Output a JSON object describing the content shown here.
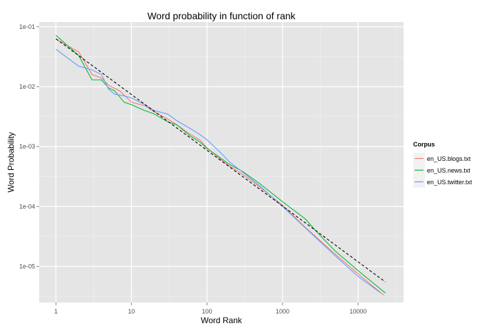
{
  "chart_data": {
    "type": "line",
    "title": "Word probability in function of rank",
    "xlabel": "Word Rank",
    "ylabel": "Word Probability",
    "x_scale": "log10",
    "y_scale": "log10",
    "xlim": [
      0.6,
      40000
    ],
    "ylim": [
      2.5e-06,
      0.12
    ],
    "x_ticks": [
      {
        "value": 1,
        "label": "1"
      },
      {
        "value": 10,
        "label": "10"
      },
      {
        "value": 100,
        "label": "100"
      },
      {
        "value": 1000,
        "label": "1000"
      },
      {
        "value": 10000,
        "label": "10000"
      }
    ],
    "y_ticks": [
      {
        "value": 1e-05,
        "label": "1e-05"
      },
      {
        "value": 0.0001,
        "label": "1e-04"
      },
      {
        "value": 0.001,
        "label": "1e-03"
      },
      {
        "value": 0.01,
        "label": "1e-02"
      },
      {
        "value": 0.1,
        "label": "1e-01"
      }
    ],
    "grid": true,
    "legend": {
      "title": "Corpus",
      "placement": "right"
    },
    "series": [
      {
        "name": "en_US.blogs.txt",
        "color": "#F8766D",
        "x": [
          1,
          2,
          3,
          4,
          5,
          7,
          10,
          15,
          20,
          30,
          40,
          60,
          80,
          100,
          150,
          200,
          300,
          500,
          1000,
          2000,
          5000,
          10000,
          22000
        ],
        "y": [
          0.062,
          0.038,
          0.016,
          0.014,
          0.0105,
          0.0085,
          0.0055,
          0.0048,
          0.0038,
          0.0029,
          0.0023,
          0.0016,
          0.0013,
          0.00095,
          0.00062,
          0.00047,
          0.00034,
          0.00021,
          0.000105,
          4.5e-05,
          1.6e-05,
          7.5e-06,
          3.3e-06
        ]
      },
      {
        "name": "en_US.news.txt",
        "color": "#00BA38",
        "x": [
          1,
          2,
          3,
          4,
          5,
          6,
          8,
          10,
          12,
          15,
          20,
          30,
          40,
          60,
          80,
          100,
          150,
          200,
          300,
          500,
          1000,
          2000,
          3000,
          5000,
          10000,
          23000
        ],
        "y": [
          0.072,
          0.033,
          0.013,
          0.013,
          0.0095,
          0.0085,
          0.0055,
          0.005,
          0.0045,
          0.004,
          0.0035,
          0.0026,
          0.0023,
          0.0015,
          0.0012,
          0.00093,
          0.00065,
          0.0005,
          0.00038,
          0.00024,
          0.00012,
          6.2e-05,
          3.5e-05,
          1.8e-05,
          8.5e-06,
          3.6e-06
        ]
      },
      {
        "name": "en_US.twitter.txt",
        "color": "#619CFF",
        "x": [
          1,
          2,
          3,
          4,
          5,
          6,
          8,
          10,
          15,
          20,
          30,
          40,
          60,
          80,
          100,
          150,
          200,
          300,
          500,
          1000,
          2000,
          5000,
          10000,
          20000
        ],
        "y": [
          0.042,
          0.022,
          0.019,
          0.016,
          0.009,
          0.0075,
          0.007,
          0.0065,
          0.005,
          0.004,
          0.0035,
          0.0027,
          0.002,
          0.0016,
          0.0013,
          0.0008,
          0.00055,
          0.00037,
          0.00022,
          0.0001,
          4.4e-05,
          1.5e-05,
          6.8e-06,
          3.6e-06
        ]
      },
      {
        "color": "#000000",
        "dashed": true,
        "x": [
          1,
          23000
        ],
        "y": [
          0.063,
          5.5e-06
        ]
      }
    ]
  }
}
